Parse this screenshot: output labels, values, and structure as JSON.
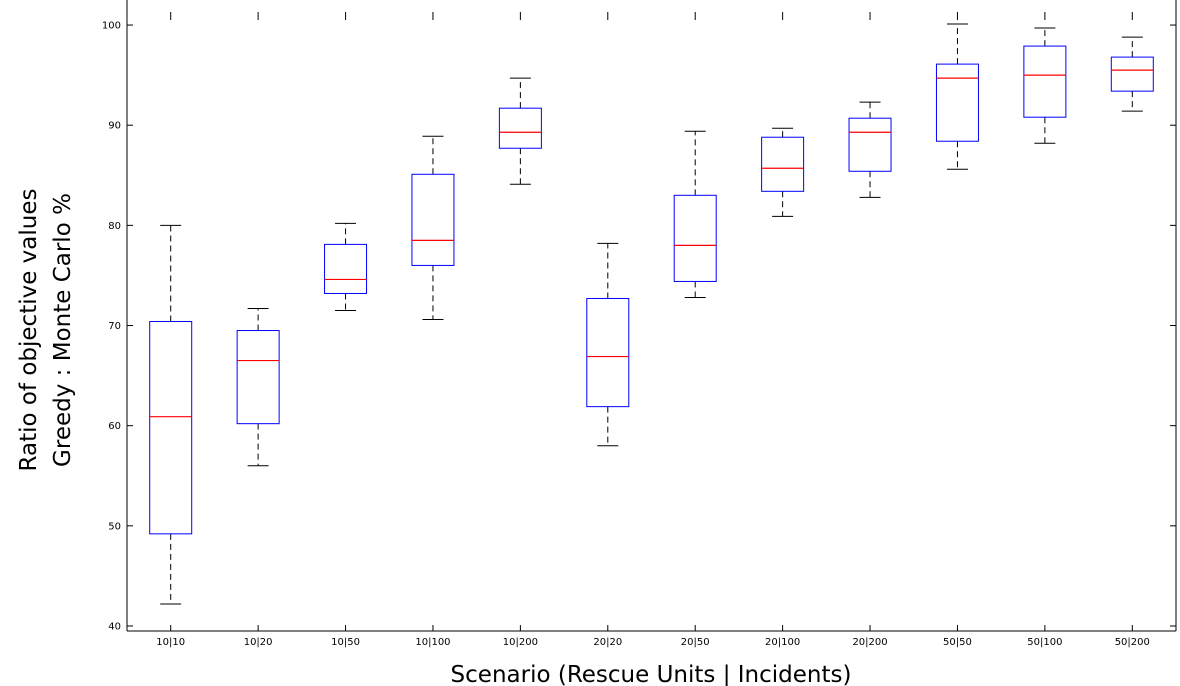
{
  "chart_data": {
    "type": "box",
    "title": "",
    "xlabel": "Scenario (Rescue Units | Incidents)",
    "ylabel_line1": "Ratio of objective values",
    "ylabel_line2": "Greedy : Monte Carlo %",
    "ylim": [
      39.5,
      103
    ],
    "yticks": [
      40,
      50,
      60,
      70,
      80,
      90,
      100
    ],
    "grid": false,
    "colors": {
      "box": "#0000ff",
      "median": "#ff0000",
      "whisker": "#000000",
      "axis": "#000000"
    },
    "categories": [
      "10|10",
      "10|20",
      "10|50",
      "10|100",
      "10|200",
      "20|20",
      "20|50",
      "20|100",
      "20|200",
      "50|50",
      "50|100",
      "50|200"
    ],
    "boxes": [
      {
        "label": "10|10",
        "whisker_low": 42.2,
        "q1": 49.2,
        "median": 60.9,
        "q3": 70.4,
        "whisker_high": 80.0
      },
      {
        "label": "10|20",
        "whisker_low": 56.0,
        "q1": 60.2,
        "median": 66.5,
        "q3": 69.5,
        "whisker_high": 71.7
      },
      {
        "label": "10|50",
        "whisker_low": 71.5,
        "q1": 73.2,
        "median": 74.6,
        "q3": 78.1,
        "whisker_high": 80.2
      },
      {
        "label": "10|100",
        "whisker_low": 70.6,
        "q1": 76.0,
        "median": 78.5,
        "q3": 85.1,
        "whisker_high": 88.9
      },
      {
        "label": "10|200",
        "whisker_low": 84.1,
        "q1": 87.7,
        "median": 89.3,
        "q3": 91.7,
        "whisker_high": 94.7
      },
      {
        "label": "20|20",
        "whisker_low": 58.0,
        "q1": 61.9,
        "median": 66.9,
        "q3": 72.7,
        "whisker_high": 78.2
      },
      {
        "label": "20|50",
        "whisker_low": 72.8,
        "q1": 74.4,
        "median": 78.0,
        "q3": 83.0,
        "whisker_high": 89.4
      },
      {
        "label": "20|100",
        "whisker_low": 80.9,
        "q1": 83.4,
        "median": 85.7,
        "q3": 88.8,
        "whisker_high": 89.7
      },
      {
        "label": "20|200",
        "whisker_low": 82.8,
        "q1": 85.4,
        "median": 89.3,
        "q3": 90.7,
        "whisker_high": 92.3
      },
      {
        "label": "50|50",
        "whisker_low": 85.6,
        "q1": 88.4,
        "median": 94.7,
        "q3": 96.1,
        "whisker_high": 100.1
      },
      {
        "label": "50|100",
        "whisker_low": 88.2,
        "q1": 90.8,
        "median": 95.0,
        "q3": 97.9,
        "whisker_high": 99.7
      },
      {
        "label": "50|200",
        "whisker_low": 91.4,
        "q1": 93.4,
        "median": 95.5,
        "q3": 96.8,
        "whisker_high": 98.8
      }
    ]
  }
}
